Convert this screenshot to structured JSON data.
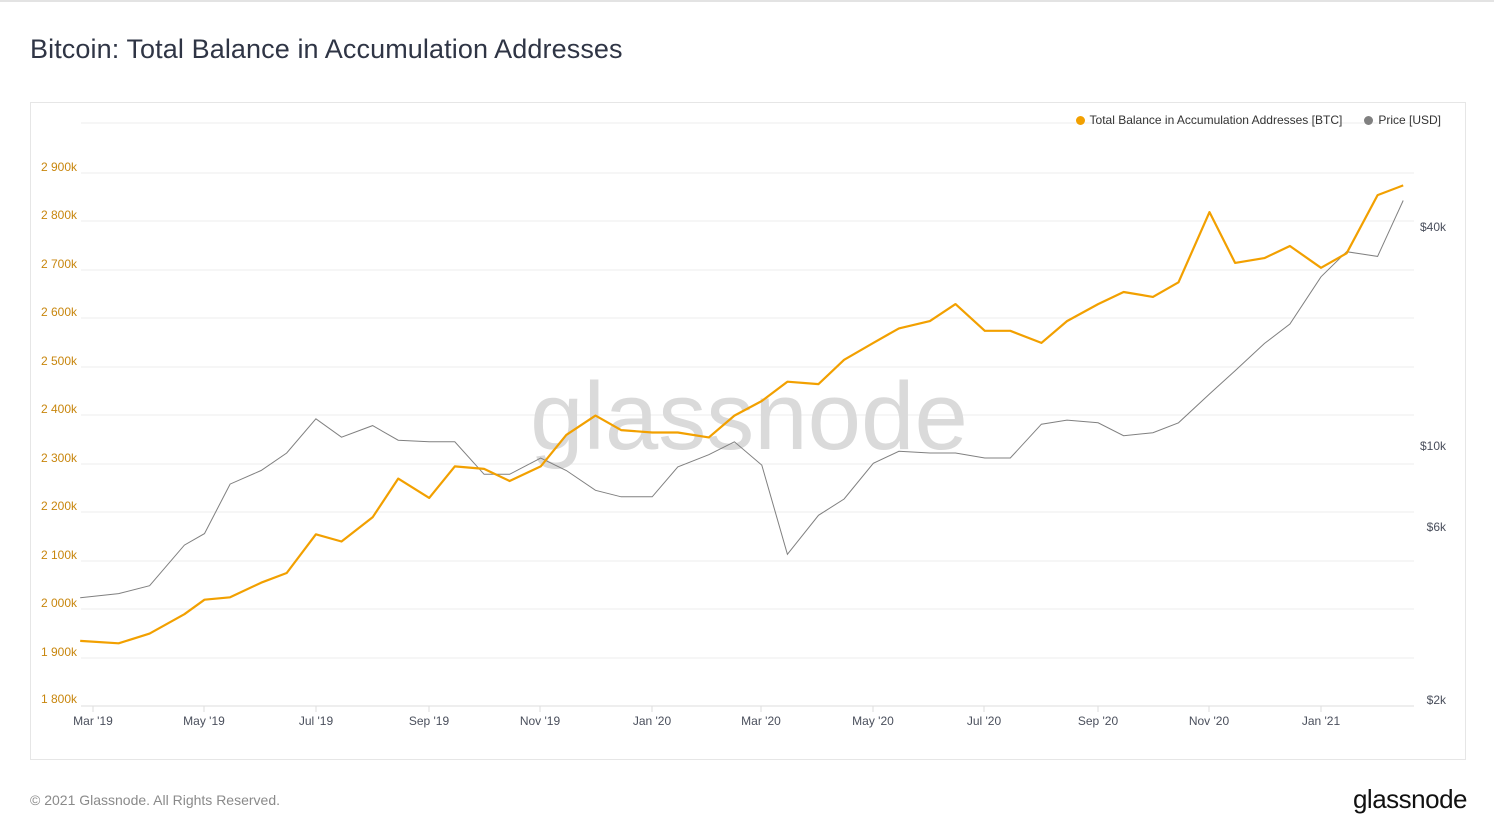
{
  "title": "Bitcoin: Total Balance in Accumulation Addresses",
  "watermark": "glassnode",
  "legend": [
    {
      "label": "Total Balance in Accumulation Addresses [BTC]",
      "color": "#f2a000"
    },
    {
      "label": "Price [USD]",
      "color": "#808080"
    }
  ],
  "footer": {
    "copyright": "© 2021 Glassnode. All Rights Reserved.",
    "logo": "glassnode"
  },
  "chart_data": {
    "type": "line",
    "title": "Bitcoin: Total Balance in Accumulation Addresses",
    "xlabel": "",
    "ylabel": "Total Balance in Accumulation Addresses [BTC]",
    "y2label": "Price [USD]",
    "x_ticks": [
      "Mar '19",
      "May '19",
      "Jul '19",
      "Sep '19",
      "Nov '19",
      "Jan '20",
      "Mar '20",
      "May '20",
      "Jul '20",
      "Sep '20",
      "Nov '20",
      "Jan '21"
    ],
    "y_ticks": [
      "1 800k",
      "1 900k",
      "2 000k",
      "2 100k",
      "2 200k",
      "2 300k",
      "2 400k",
      "2 500k",
      "2 600k",
      "2 700k",
      "2 800k",
      "2 900k"
    ],
    "y2_ticks": [
      "$2k",
      "$6k",
      "$10k",
      "$40k"
    ],
    "ylim": [
      1800000,
      2900000
    ],
    "y2_scale": "log",
    "y2lim": [
      2000,
      60000
    ],
    "grid": true,
    "legend_position": "top-right",
    "x": [
      "2019-02-22",
      "2019-03-15",
      "2019-04-01",
      "2019-04-20",
      "2019-05-01",
      "2019-05-15",
      "2019-06-01",
      "2019-06-15",
      "2019-07-01",
      "2019-07-15",
      "2019-08-01",
      "2019-08-15",
      "2019-09-01",
      "2019-09-15",
      "2019-10-01",
      "2019-10-15",
      "2019-11-01",
      "2019-11-15",
      "2019-12-01",
      "2019-12-15",
      "2020-01-01",
      "2020-01-15",
      "2020-02-01",
      "2020-02-15",
      "2020-03-01",
      "2020-03-15",
      "2020-04-01",
      "2020-04-15",
      "2020-05-01",
      "2020-05-15",
      "2020-06-01",
      "2020-06-15",
      "2020-07-01",
      "2020-07-15",
      "2020-08-01",
      "2020-08-15",
      "2020-09-01",
      "2020-09-15",
      "2020-10-01",
      "2020-10-15",
      "2020-11-01",
      "2020-11-15",
      "2020-12-01",
      "2020-12-15",
      "2021-01-01",
      "2021-01-15",
      "2021-02-01",
      "2021-02-15"
    ],
    "series": [
      {
        "name": "Total Balance in Accumulation Addresses [BTC]",
        "axis": "left",
        "color": "#f2a000",
        "values": [
          1920000,
          1915000,
          1935000,
          1975000,
          2005000,
          2010000,
          2040000,
          2060000,
          2140000,
          2125000,
          2175000,
          2255000,
          2215000,
          2280000,
          2275000,
          2250000,
          2280000,
          2345000,
          2385000,
          2355000,
          2350000,
          2350000,
          2340000,
          2385000,
          2415000,
          2455000,
          2450000,
          2500000,
          2535000,
          2565000,
          2580000,
          2615000,
          2560000,
          2560000,
          2535000,
          2580000,
          2615000,
          2640000,
          2630000,
          2660000,
          2805000,
          2700000,
          2710000,
          2735000,
          2690000,
          2720000,
          2840000,
          2860000
        ]
      },
      {
        "name": "Price [USD]",
        "axis": "right",
        "color": "#808080",
        "values": [
          3800,
          3900,
          4100,
          5300,
          5700,
          7800,
          8500,
          9500,
          11800,
          10500,
          11300,
          10300,
          10200,
          10200,
          8300,
          8300,
          9200,
          8500,
          7500,
          7200,
          7200,
          8700,
          9400,
          10200,
          8800,
          5000,
          6400,
          7100,
          8900,
          9600,
          9500,
          9500,
          9200,
          9200,
          11400,
          11700,
          11500,
          10600,
          10800,
          11500,
          13800,
          16000,
          19000,
          21500,
          29000,
          34000,
          33000,
          47000
        ]
      }
    ]
  }
}
